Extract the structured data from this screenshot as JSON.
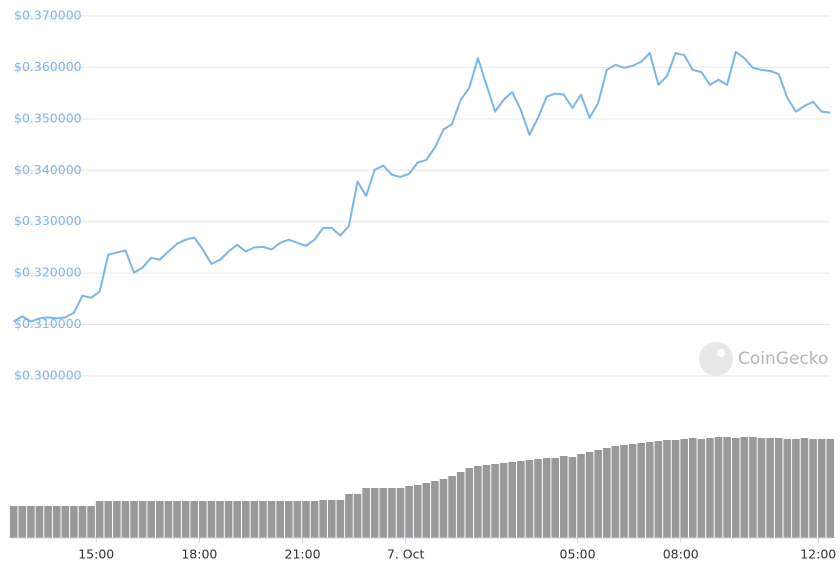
{
  "chart_data": {
    "type": "line",
    "watermark": "CoinGecko",
    "x": [
      12.6,
      12.85,
      13.1,
      13.35,
      13.6,
      13.85,
      14.1,
      14.35,
      14.6,
      14.85,
      15.1,
      15.35,
      15.6,
      15.85,
      16.1,
      16.35,
      16.6,
      16.85,
      17.1,
      17.35,
      17.6,
      17.85,
      18.1,
      18.35,
      18.6,
      18.85,
      19.1,
      19.35,
      19.6,
      19.85,
      20.1,
      20.35,
      20.6,
      20.85,
      21.1,
      21.35,
      21.6,
      21.85,
      22.1,
      22.35,
      22.6,
      22.85,
      23.1,
      23.35,
      23.6,
      23.85,
      24.1,
      24.35,
      24.6,
      24.85,
      25.1,
      25.35,
      25.6,
      25.85,
      26.1,
      26.35,
      26.6,
      26.85,
      27.1,
      27.35,
      27.6,
      27.85,
      28.1,
      28.35,
      28.6,
      28.85,
      29.1,
      29.35,
      29.6,
      29.85,
      30.1,
      30.35,
      30.6,
      30.85,
      31.1,
      31.35,
      31.6,
      31.85,
      32.1,
      32.35,
      32.6,
      32.85,
      33.1,
      33.35,
      33.6,
      33.85,
      34.1,
      34.35,
      34.6,
      34.85,
      35.1,
      35.35,
      35.6,
      35.85,
      36.1,
      36.35
    ],
    "series": [
      {
        "color": "#7cb5ec",
        "values": [
          0.3106,
          0.3116,
          0.3106,
          0.3112,
          0.3114,
          0.3112,
          0.3114,
          0.3123,
          0.3156,
          0.3152,
          0.3164,
          0.3236,
          0.324,
          0.3244,
          0.3201,
          0.3211,
          0.323,
          0.3226,
          0.3242,
          0.3257,
          0.3265,
          0.3269,
          0.3246,
          0.3218,
          0.3226,
          0.3242,
          0.3255,
          0.3242,
          0.325,
          0.3251,
          0.3246,
          0.3259,
          0.3265,
          0.3259,
          0.3253,
          0.3265,
          0.3288,
          0.3288,
          0.3273,
          0.3292,
          0.3378,
          0.335,
          0.3401,
          0.3409,
          0.3391,
          0.3387,
          0.3393,
          0.3415,
          0.342,
          0.3444,
          0.3479,
          0.349,
          0.3537,
          0.356,
          0.3618,
          0.3566,
          0.3514,
          0.3537,
          0.3552,
          0.3517,
          0.3469,
          0.3502,
          0.3543,
          0.3549,
          0.3547,
          0.3521,
          0.3547,
          0.3502,
          0.3531,
          0.3595,
          0.3605,
          0.3599,
          0.3603,
          0.3611,
          0.3628,
          0.3566,
          0.3583,
          0.3628,
          0.3624,
          0.3595,
          0.3591,
          0.3566,
          0.3576,
          0.3566,
          0.363,
          0.3618,
          0.3599,
          0.3595,
          0.3593,
          0.3587,
          0.3541,
          0.3514,
          0.3525,
          0.3533,
          0.3514,
          0.3512
        ]
      }
    ],
    "volume": {
      "type": "bar",
      "color": "#999999",
      "ylim": [
        0,
        140
      ],
      "values": [
        32,
        32,
        32,
        32,
        32,
        32,
        32,
        32,
        32,
        32,
        37,
        37,
        37,
        37,
        37,
        37,
        37,
        37,
        37,
        37,
        37,
        37,
        37,
        37,
        37,
        37,
        37,
        37,
        37,
        37,
        37,
        37,
        37,
        37,
        37,
        37,
        38,
        38,
        38,
        44,
        44,
        50,
        50,
        50,
        50,
        50,
        52,
        53,
        55,
        57,
        59,
        62,
        66,
        70,
        72,
        73,
        74,
        75,
        76,
        77,
        78,
        79,
        80,
        80,
        82,
        81,
        84,
        86,
        88,
        90,
        92,
        93,
        94,
        95,
        96,
        97,
        98,
        98,
        99,
        100,
        99,
        100,
        101,
        101,
        100,
        101,
        101,
        100,
        100,
        100,
        99,
        99,
        100,
        99,
        99,
        99
      ]
    },
    "xlim": [
      12.55,
      36.4
    ],
    "ylim": [
      0.29825,
      0.3731
    ],
    "xticks": [
      {
        "value": 15,
        "label": "15:00"
      },
      {
        "value": 18,
        "label": "18:00"
      },
      {
        "value": 21,
        "label": "21:00"
      },
      {
        "value": 24,
        "label": "7. Oct"
      },
      {
        "value": 29,
        "label": "05:00"
      },
      {
        "value": 32,
        "label": "08:00"
      },
      {
        "value": 36,
        "label": "12:00"
      }
    ],
    "yticks": [
      {
        "value": 0.3,
        "label": "$0.300000"
      },
      {
        "value": 0.31,
        "label": "$0.310000"
      },
      {
        "value": 0.32,
        "label": "$0.320000"
      },
      {
        "value": 0.33,
        "label": "$0.330000"
      },
      {
        "value": 0.34,
        "label": "$0.340000"
      },
      {
        "value": 0.35,
        "label": "$0.350000"
      },
      {
        "value": 0.36,
        "label": "$0.360000"
      },
      {
        "value": 0.37,
        "label": "$0.370000"
      }
    ],
    "grid": true
  }
}
